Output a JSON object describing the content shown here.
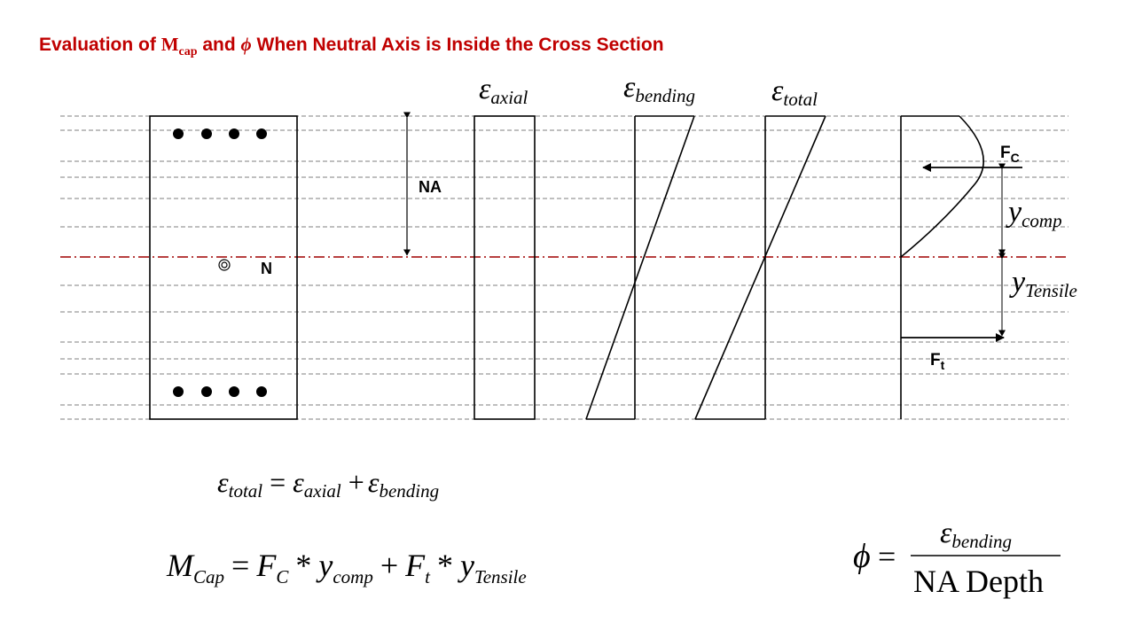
{
  "title": {
    "part1": "Evaluation of ",
    "m": "M",
    "cap": "cap",
    "part2": " and ",
    "phi": "ϕ",
    "part3": " When Neutral Axis is Inside the Cross Section"
  },
  "strain_labels": {
    "epsilon": "ε",
    "axial": "axial",
    "bending": "bending",
    "total": "total"
  },
  "labels": {
    "na": "NA",
    "n": "N",
    "fc": "F",
    "fc_sub": "C",
    "ft": "F",
    "ft_sub": "t",
    "y": "y",
    "comp": "comp",
    "tensile": "Tensile"
  },
  "equations": {
    "eq1": {
      "lhs_sub": "total",
      "t1_sub": "axial",
      "t2_sub": "bending"
    },
    "eq2": {
      "m": "M",
      "m_sub": "Cap",
      "f1": "F",
      "f1_sub": "C",
      "y1_sub": "comp",
      "f2": "F",
      "f2_sub": "t",
      "y2_sub": "Tensile"
    },
    "eq3": {
      "phi": "ϕ",
      "num_sub": "bending",
      "denominator": "NA Depth"
    }
  },
  "colors": {
    "title": "#c00000",
    "neutral_axis": "#a00000",
    "grid": "#555555",
    "line": "#000000"
  }
}
